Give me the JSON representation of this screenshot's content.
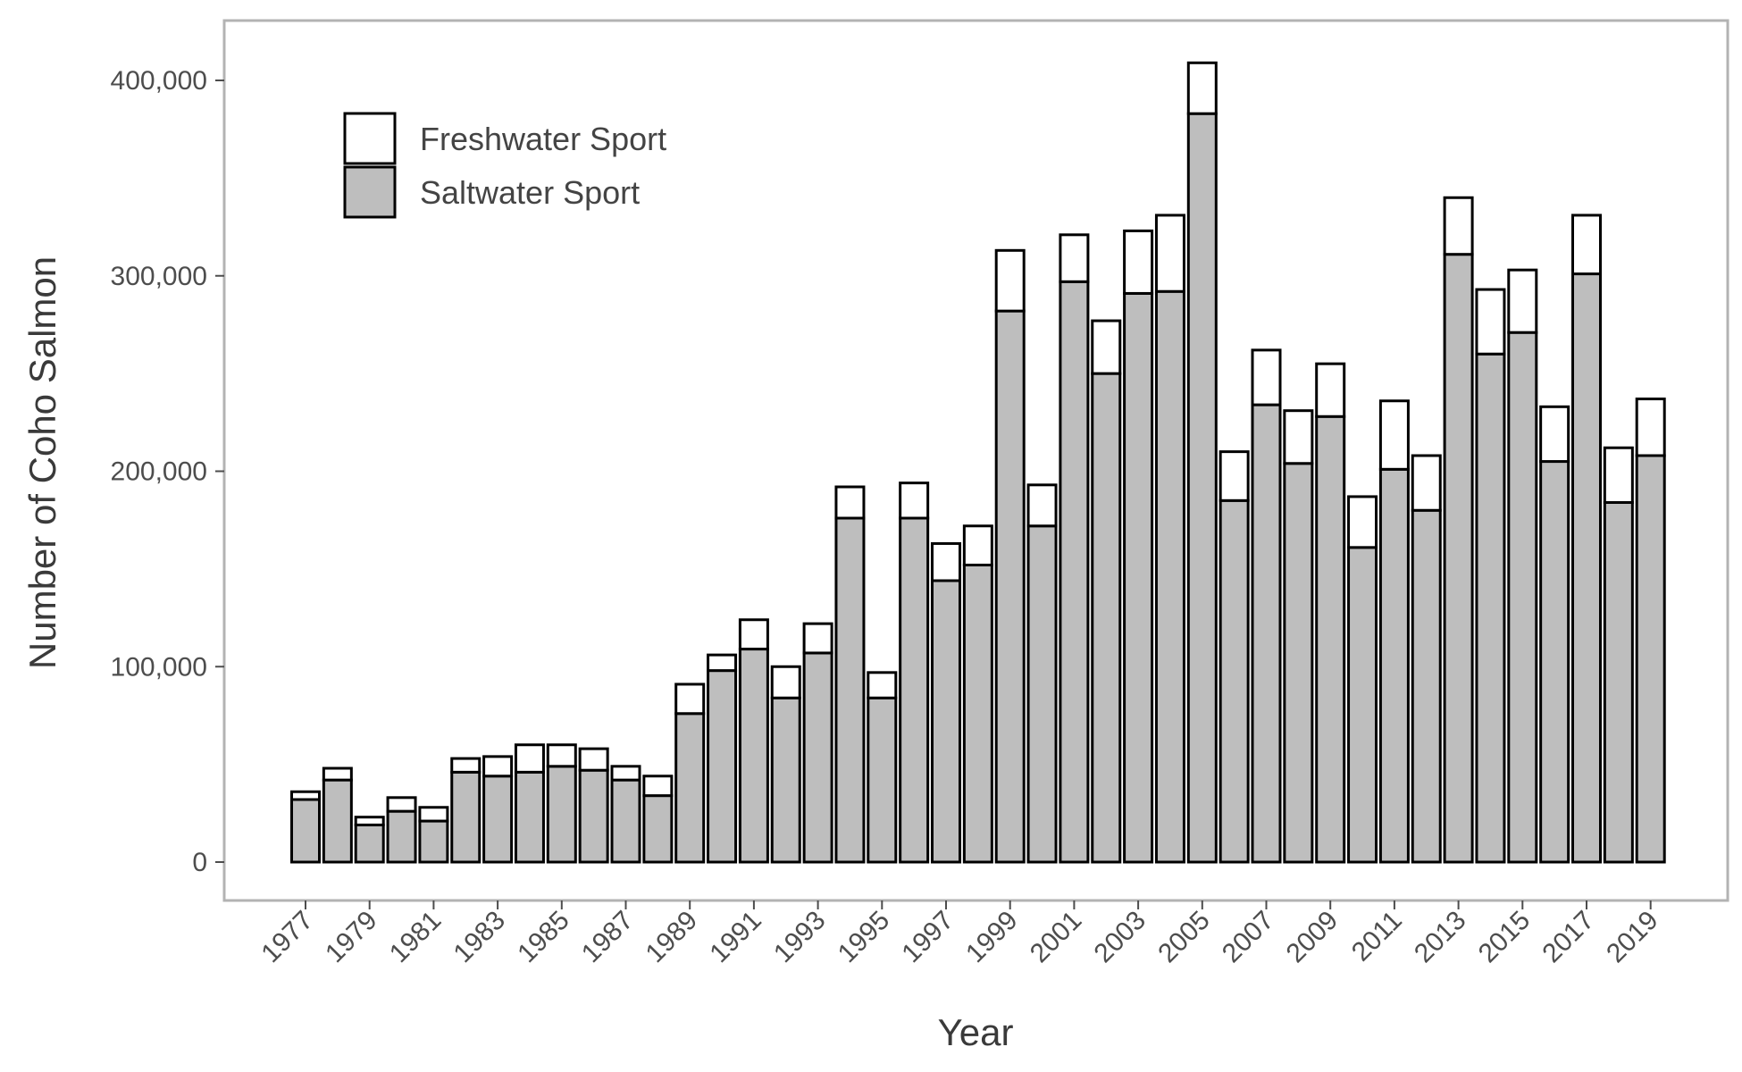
{
  "chart_data": {
    "type": "bar",
    "stacked": true,
    "title": "",
    "xlabel": "Year",
    "ylabel": "Number of Coho Salmon",
    "ylim": [
      -20000,
      430000
    ],
    "yticks": [
      0,
      100000,
      200000,
      300000,
      400000
    ],
    "ytick_labels": [
      "0",
      "100,000",
      "200,000",
      "300,000",
      "400,000"
    ],
    "xtick_labels": [
      "1977",
      "1979",
      "1981",
      "1983",
      "1985",
      "1987",
      "1989",
      "1991",
      "1993",
      "1995",
      "1997",
      "1999",
      "2001",
      "2003",
      "2005",
      "2007",
      "2009",
      "2011",
      "2013",
      "2015",
      "2017",
      "2019"
    ],
    "grid": false,
    "legend_position": "top-left",
    "categories": [
      "1977",
      "1978",
      "1979",
      "1980",
      "1981",
      "1982",
      "1983",
      "1984",
      "1985",
      "1986",
      "1987",
      "1988",
      "1989",
      "1990",
      "1991",
      "1992",
      "1993",
      "1994",
      "1995",
      "1996",
      "1997",
      "1998",
      "1999",
      "2000",
      "2001",
      "2002",
      "2003",
      "2004",
      "2005",
      "2006",
      "2007",
      "2008",
      "2009",
      "2010",
      "2011",
      "2012",
      "2013",
      "2014",
      "2015",
      "2016",
      "2017",
      "2018",
      "2019"
    ],
    "series": [
      {
        "name": "Saltwater Sport",
        "color": "#bebebe",
        "values": [
          32000,
          42000,
          19000,
          26000,
          21000,
          46000,
          44000,
          46000,
          49000,
          47000,
          42000,
          34000,
          76000,
          98000,
          109000,
          84000,
          107000,
          176000,
          84000,
          176000,
          144000,
          152000,
          282000,
          172000,
          297000,
          250000,
          291000,
          292000,
          383000,
          185000,
          234000,
          204000,
          228000,
          161000,
          201000,
          180000,
          311000,
          260000,
          271000,
          205000,
          301000,
          184000,
          208000
        ]
      },
      {
        "name": "Freshwater Sport",
        "color": "#ffffff",
        "values": [
          4000,
          6000,
          4000,
          7000,
          7000,
          7000,
          10000,
          14000,
          11000,
          11000,
          7000,
          10000,
          15000,
          8000,
          15000,
          16000,
          15000,
          16000,
          13000,
          18000,
          19000,
          20000,
          31000,
          21000,
          24000,
          27000,
          32000,
          39000,
          26000,
          25000,
          28000,
          27000,
          27000,
          26000,
          35000,
          28000,
          29000,
          33000,
          32000,
          28000,
          30000,
          28000,
          29000
        ]
      }
    ],
    "legend": [
      "Freshwater Sport",
      "Saltwater Sport"
    ]
  }
}
